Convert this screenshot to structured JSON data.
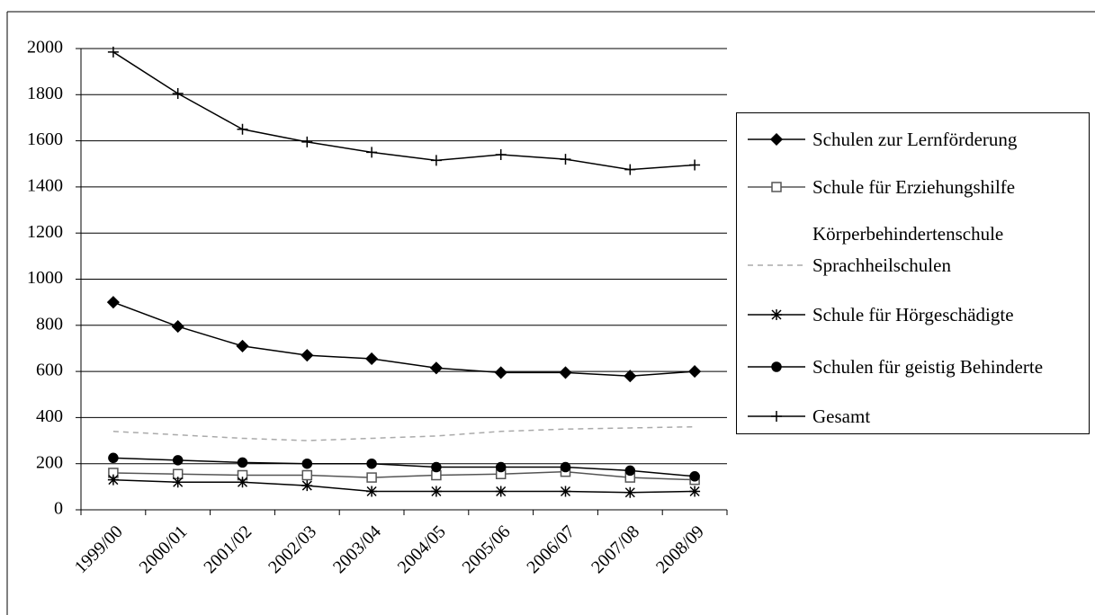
{
  "chart_data": {
    "type": "line",
    "categories": [
      "1999/00",
      "2000/01",
      "2001/02",
      "2002/03",
      "2003/04",
      "2004/05",
      "2005/06",
      "2006/07",
      "2007/08",
      "2008/09"
    ],
    "series": [
      {
        "name": "Schulen zur Lernförderung",
        "color": "#000000",
        "marker": "diamond",
        "values": [
          900,
          795,
          710,
          670,
          655,
          615,
          595,
          595,
          580,
          600
        ]
      },
      {
        "name": "Schule für Erziehungshilfe",
        "color": "#555555",
        "marker": "square",
        "values": [
          160,
          155,
          150,
          150,
          140,
          150,
          155,
          165,
          140,
          130
        ]
      },
      {
        "name": "Körperbehindertenschule",
        "color": "#ffffff",
        "marker": "none",
        "values": [
          null,
          null,
          null,
          null,
          null,
          null,
          null,
          null,
          null,
          null
        ]
      },
      {
        "name": "Sprachheilschulen",
        "color": "#aaaaaa",
        "marker": "none",
        "dash": true,
        "values": [
          340,
          325,
          310,
          300,
          310,
          320,
          340,
          350,
          355,
          360
        ]
      },
      {
        "name": "Schule für Hörgeschädigte",
        "color": "#000000",
        "marker": "asterisk",
        "values": [
          130,
          120,
          120,
          105,
          80,
          80,
          80,
          80,
          75,
          80
        ]
      },
      {
        "name": "Schulen für geistig Behinderte",
        "color": "#000000",
        "marker": "circle",
        "values": [
          225,
          215,
          205,
          200,
          200,
          185,
          185,
          185,
          170,
          145
        ]
      },
      {
        "name": "Gesamt",
        "color": "#000000",
        "marker": "plus",
        "values": [
          1985,
          1805,
          1650,
          1595,
          1550,
          1515,
          1540,
          1520,
          1475,
          1495
        ]
      }
    ],
    "ylim": [
      0,
      2000
    ],
    "yticks": [
      0,
      200,
      400,
      600,
      800,
      1000,
      1200,
      1400,
      1600,
      1800,
      2000
    ],
    "grid": true,
    "legend": "right"
  }
}
